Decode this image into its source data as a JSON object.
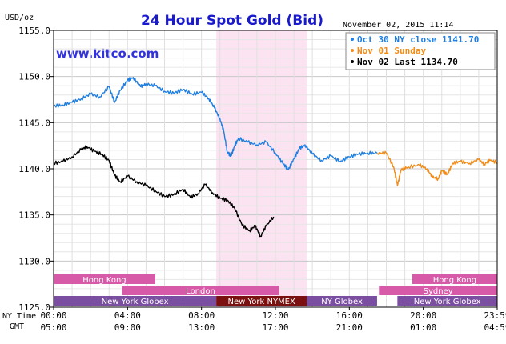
{
  "chart_data": {
    "type": "line",
    "title": "24 Hour Spot Gold (Bid)",
    "brand": "www.kitco.com",
    "timestamp": "November 02, 2015 11:14",
    "ylabel": "USD/oz",
    "ylim": [
      1125,
      1155
    ],
    "yticks": [
      "1155.0",
      "1150.0",
      "1145.0",
      "1140.0",
      "1135.0",
      "1130.0",
      "1125.0"
    ],
    "grid": true,
    "legend_position": "top-right",
    "x_row_labels": [
      "NY Time",
      "GMT"
    ],
    "x_ny_ticks": [
      "00:00",
      "04:00",
      "08:00",
      "12:00",
      "16:00",
      "20:00",
      "23:59"
    ],
    "x_gmt_ticks": [
      "05:00",
      "09:00",
      "13:00",
      "17:00",
      "21:00",
      "01:00",
      "04:59"
    ],
    "highlight_hours": [
      8.8,
      13.7
    ],
    "legend": [
      {
        "label": "Oct 30 NY close 1141.70",
        "color": "#1f7fe0"
      },
      {
        "label": "Nov 01 Sunday",
        "color": "#f08c1a"
      },
      {
        "label": "Nov 02 Last 1134.70",
        "color": "#000000"
      }
    ],
    "markets": [
      {
        "label": "Hong Kong",
        "row": 0,
        "start": 0,
        "end": 5.5,
        "color": "#d65aa8"
      },
      {
        "label": "Hong Kong",
        "row": 0,
        "start": 19.4,
        "end": 24,
        "color": "#d65aa8"
      },
      {
        "label": "London",
        "row": 1,
        "start": 3.7,
        "end": 12.2,
        "color": "#d65aa8"
      },
      {
        "label": "Sydney",
        "row": 1,
        "start": 17.6,
        "end": 24,
        "color": "#d65aa8"
      },
      {
        "label": "New York Globex",
        "row": 2,
        "start": 0,
        "end": 8.8,
        "color": "#7a4ea0"
      },
      {
        "label": "New York NYMEX",
        "row": 2,
        "start": 8.8,
        "end": 13.7,
        "color": "#7a1010"
      },
      {
        "label": "NY Globex",
        "row": 2,
        "start": 13.7,
        "end": 17.5,
        "color": "#7a4ea0"
      },
      {
        "label": "New York Globex",
        "row": 2,
        "start": 18.6,
        "end": 24,
        "color": "#7a4ea0"
      }
    ],
    "series": [
      {
        "name": "Oct 30 NY close 1141.70",
        "color": "#1f7fe0",
        "points": [
          [
            0,
            1146.8
          ],
          [
            0.5,
            1146.9
          ],
          [
            1.0,
            1147.2
          ],
          [
            1.5,
            1147.6
          ],
          [
            2.0,
            1148.1
          ],
          [
            2.5,
            1147.8
          ],
          [
            3.0,
            1148.9
          ],
          [
            3.3,
            1147.2
          ],
          [
            3.6,
            1148.5
          ],
          [
            4.0,
            1149.6
          ],
          [
            4.3,
            1149.9
          ],
          [
            4.7,
            1148.9
          ],
          [
            5.0,
            1149.2
          ],
          [
            5.5,
            1149.0
          ],
          [
            6.0,
            1148.4
          ],
          [
            6.5,
            1148.2
          ],
          [
            7.0,
            1148.6
          ],
          [
            7.5,
            1148.1
          ],
          [
            8.0,
            1148.3
          ],
          [
            8.4,
            1147.6
          ],
          [
            8.7,
            1146.6
          ],
          [
            9.0,
            1145.4
          ],
          [
            9.2,
            1144.1
          ],
          [
            9.4,
            1141.8
          ],
          [
            9.6,
            1141.4
          ],
          [
            9.8,
            1142.5
          ],
          [
            10.0,
            1143.3
          ],
          [
            10.5,
            1142.9
          ],
          [
            11.0,
            1142.6
          ],
          [
            11.5,
            1142.9
          ],
          [
            12.0,
            1141.7
          ],
          [
            12.4,
            1140.6
          ],
          [
            12.7,
            1139.9
          ],
          [
            13.0,
            1141.1
          ],
          [
            13.3,
            1142.2
          ],
          [
            13.6,
            1142.6
          ],
          [
            14.0,
            1141.6
          ],
          [
            14.5,
            1140.9
          ],
          [
            15.0,
            1141.4
          ],
          [
            15.5,
            1140.8
          ],
          [
            16.0,
            1141.3
          ],
          [
            16.5,
            1141.6
          ],
          [
            17.0,
            1141.7
          ],
          [
            17.5,
            1141.7
          ]
        ]
      },
      {
        "name": "Nov 01 Sunday",
        "color": "#f08c1a",
        "points": [
          [
            17.5,
            1141.7
          ],
          [
            18.0,
            1141.7
          ],
          [
            18.4,
            1140.2
          ],
          [
            18.6,
            1138.2
          ],
          [
            18.8,
            1139.9
          ],
          [
            19.2,
            1140.2
          ],
          [
            19.8,
            1140.4
          ],
          [
            20.2,
            1140.0
          ],
          [
            20.5,
            1139.1
          ],
          [
            20.8,
            1138.9
          ],
          [
            21.0,
            1139.8
          ],
          [
            21.3,
            1139.4
          ],
          [
            21.6,
            1140.6
          ],
          [
            22.0,
            1140.8
          ],
          [
            22.5,
            1140.6
          ],
          [
            23.0,
            1141.0
          ],
          [
            23.3,
            1140.5
          ],
          [
            23.6,
            1140.9
          ],
          [
            24.0,
            1140.7
          ]
        ]
      },
      {
        "name": "Nov 02 Last 1134.70",
        "color": "#000000",
        "points": [
          [
            0,
            1140.6
          ],
          [
            0.5,
            1140.8
          ],
          [
            1.0,
            1141.3
          ],
          [
            1.5,
            1142.1
          ],
          [
            1.8,
            1142.4
          ],
          [
            2.2,
            1141.9
          ],
          [
            2.6,
            1141.6
          ],
          [
            3.0,
            1140.9
          ],
          [
            3.3,
            1139.3
          ],
          [
            3.6,
            1138.6
          ],
          [
            4.0,
            1139.2
          ],
          [
            4.5,
            1138.6
          ],
          [
            5.0,
            1138.2
          ],
          [
            5.5,
            1137.6
          ],
          [
            6.0,
            1137.0
          ],
          [
            6.5,
            1137.2
          ],
          [
            7.0,
            1137.8
          ],
          [
            7.4,
            1136.9
          ],
          [
            7.8,
            1137.3
          ],
          [
            8.2,
            1138.3
          ],
          [
            8.6,
            1137.4
          ],
          [
            9.0,
            1136.8
          ],
          [
            9.4,
            1136.6
          ],
          [
            9.8,
            1135.7
          ],
          [
            10.2,
            1133.9
          ],
          [
            10.6,
            1133.3
          ],
          [
            10.9,
            1133.8
          ],
          [
            11.2,
            1132.7
          ],
          [
            11.5,
            1133.8
          ],
          [
            11.9,
            1134.8
          ]
        ]
      }
    ]
  }
}
